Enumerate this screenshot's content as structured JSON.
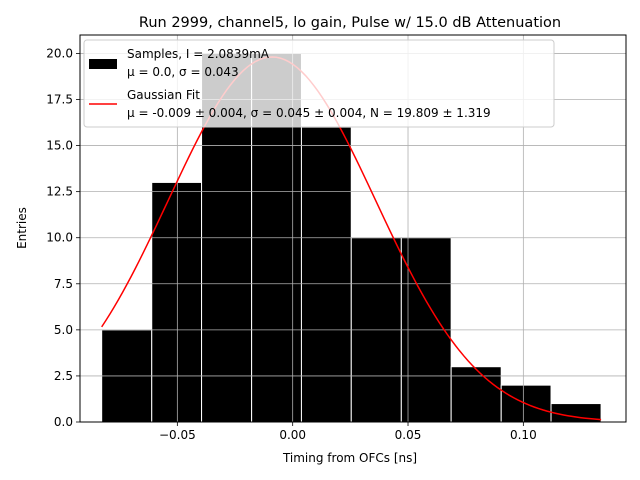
{
  "chart_data": {
    "type": "bar",
    "title": "Run 2999, channel5, lo gain, Pulse w/ 15.0 dB Attenuation",
    "xlabel": "Timing from OFCs [ns]",
    "ylabel": "Entries",
    "xlim": [
      -0.0922,
      0.1445
    ],
    "ylim": [
      0,
      21
    ],
    "grid": true,
    "legend_position": "upper-left",
    "xticks": [
      -0.05,
      0.0,
      0.05,
      0.1
    ],
    "xtick_labels": [
      "−0.05",
      "0.00",
      "0.05",
      "0.10"
    ],
    "yticks": [
      0,
      2.5,
      5,
      7.5,
      10,
      12.5,
      15,
      17.5,
      20
    ],
    "ytick_labels": [
      "0.0",
      "2.5",
      "5.0",
      "7.5",
      "10.0",
      "12.5",
      "15.0",
      "17.5",
      "20.0"
    ],
    "bins": [
      {
        "x0": -0.0828,
        "x1": -0.0611,
        "count": 5
      },
      {
        "x0": -0.0611,
        "x1": -0.0395,
        "count": 13
      },
      {
        "x0": -0.0395,
        "x1": -0.0178,
        "count": 20
      },
      {
        "x0": -0.0178,
        "x1": 0.0038,
        "count": 20
      },
      {
        "x0": 0.0038,
        "x1": 0.0254,
        "count": 16
      },
      {
        "x0": 0.0254,
        "x1": 0.0471,
        "count": 10
      },
      {
        "x0": 0.0471,
        "x1": 0.0687,
        "count": 10
      },
      {
        "x0": 0.0687,
        "x1": 0.0904,
        "count": 3
      },
      {
        "x0": 0.0904,
        "x1": 0.112,
        "count": 2
      },
      {
        "x0": 0.112,
        "x1": 0.1337,
        "count": 1
      }
    ],
    "fit": {
      "mu": -0.009,
      "sigma": 0.045,
      "N": 19.809,
      "x_start": -0.0828,
      "x_end": 0.1337
    },
    "legend": [
      {
        "label": "Samples, I = 2.0839mA",
        "stats": "μ = 0.0, σ = 0.043",
        "color": "#000000",
        "kind": "patch"
      },
      {
        "label": "Gaussian Fit",
        "stats": "μ = -0.009 ± 0.004, σ = 0.045 ± 0.004, N = 19.809 ± 1.319",
        "color": "#ff0000",
        "kind": "line"
      }
    ],
    "colors": {
      "bars": "#000000",
      "fit": "#ff0000",
      "grid": "#b0b0b0",
      "legend_bg": "#ffffff"
    }
  }
}
